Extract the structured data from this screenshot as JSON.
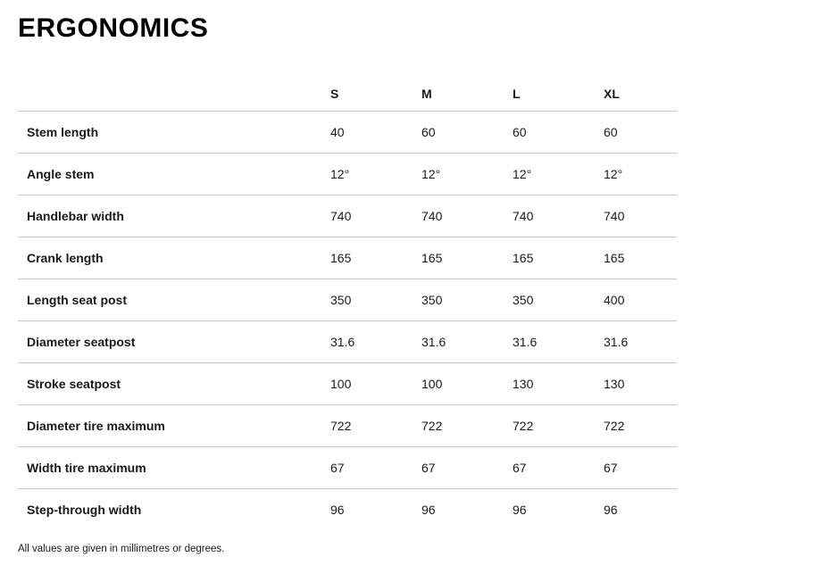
{
  "page": {
    "title": "ERGONOMICS",
    "footnote": "All values are given in millimetres or degrees."
  },
  "table": {
    "columns": [
      "S",
      "M",
      "L",
      "XL"
    ],
    "rows": [
      {
        "label": "Stem length",
        "values": [
          "40",
          "60",
          "60",
          "60"
        ]
      },
      {
        "label": "Angle stem",
        "values": [
          "12°",
          "12°",
          "12°",
          "12°"
        ]
      },
      {
        "label": "Handlebar width",
        "values": [
          "740",
          "740",
          "740",
          "740"
        ]
      },
      {
        "label": "Crank length",
        "values": [
          "165",
          "165",
          "165",
          "165"
        ]
      },
      {
        "label": "Length seat post",
        "values": [
          "350",
          "350",
          "350",
          "400"
        ]
      },
      {
        "label": "Diameter seatpost",
        "values": [
          "31.6",
          "31.6",
          "31.6",
          "31.6"
        ]
      },
      {
        "label": "Stroke seatpost",
        "values": [
          "100",
          "100",
          "130",
          "130"
        ]
      },
      {
        "label": "Diameter tire maximum",
        "values": [
          "722",
          "722",
          "722",
          "722"
        ]
      },
      {
        "label": "Width tire maximum",
        "values": [
          "67",
          "67",
          "67",
          "67"
        ]
      },
      {
        "label": "Step-through width",
        "values": [
          "96",
          "96",
          "96",
          "96"
        ]
      }
    ]
  },
  "colors": {
    "text": "#1a1a1a",
    "border": "#c9c9c9"
  }
}
